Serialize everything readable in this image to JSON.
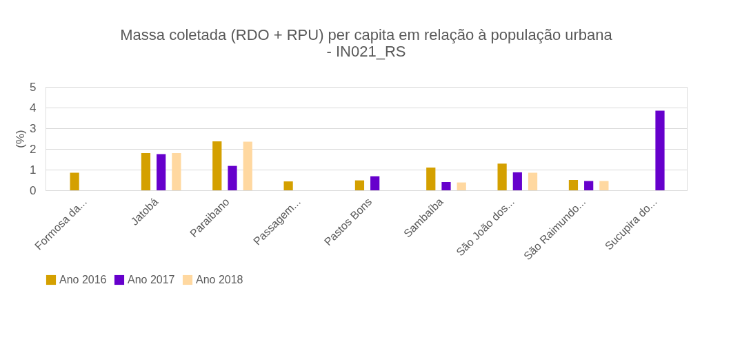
{
  "chart_data": {
    "type": "bar",
    "title": [
      "Massa coletada (RDO + RPU) per capita em relação à população urbana",
      "- IN021_RS"
    ],
    "ylabel": "(%)",
    "categories": [
      "Formosa da...",
      "Jatobá",
      "Paraibano",
      "Passagem...",
      "Pastos Bons",
      "Sambaíba",
      "São João dos...",
      "São Raimundo...",
      "Sucupira do..."
    ],
    "series": [
      {
        "name": "Ano 2016",
        "color": "#d4a000",
        "values": [
          0.85,
          1.8,
          2.37,
          0.43,
          0.48,
          1.1,
          1.29,
          0.5,
          null
        ]
      },
      {
        "name": "Ano 2017",
        "color": "#6600cc",
        "values": [
          null,
          1.75,
          1.18,
          null,
          0.68,
          0.4,
          0.87,
          0.45,
          3.85
        ]
      },
      {
        "name": "Ano 2018",
        "color": "#ffd8a0",
        "values": [
          null,
          1.8,
          2.35,
          null,
          null,
          0.38,
          0.85,
          0.45,
          null
        ]
      }
    ],
    "ylim": [
      0,
      5
    ],
    "yticks": [
      0,
      1,
      2,
      3,
      4,
      5
    ],
    "grid": "y",
    "legend": "bottom"
  }
}
